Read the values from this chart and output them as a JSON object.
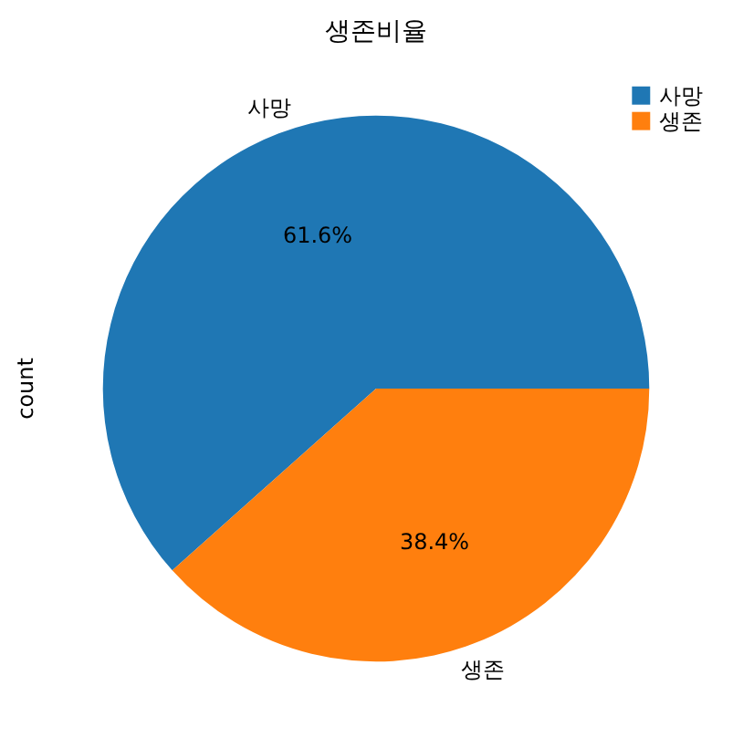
{
  "chart_data": {
    "type": "pie",
    "title": "생존비율",
    "ylabel": "count",
    "categories": [
      "사망",
      "생존"
    ],
    "values": [
      61.6,
      38.4
    ],
    "colors": [
      "#1f77b4",
      "#ff7f0e"
    ],
    "value_labels": [
      "61.6%",
      "38.4%"
    ],
    "legend": "top right"
  }
}
